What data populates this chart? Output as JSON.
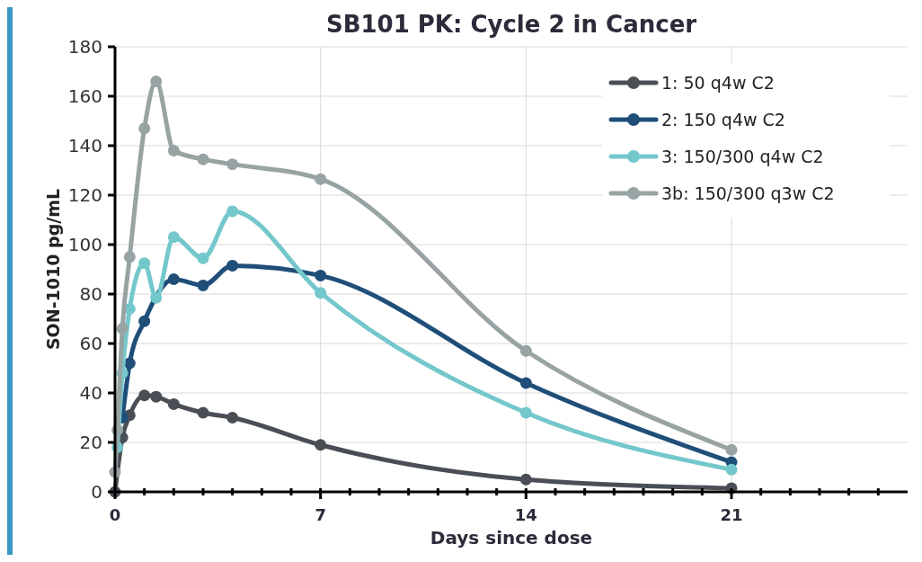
{
  "chart_data": {
    "type": "line",
    "title": "SB101 PK: Cycle 2 in Cancer",
    "xlabel": "Days since dose",
    "ylabel": "SON-1010 pg/mL",
    "xlim": [
      0,
      27
    ],
    "xticks": [
      0,
      {
        "value": 1,
        "label": null
      },
      {
        "value": 2,
        "label": null
      },
      {
        "value": 3,
        "label": null
      },
      {
        "value": 4,
        "label": null
      },
      {
        "value": 5,
        "label": null
      },
      {
        "value": 6,
        "label": null
      },
      7,
      {
        "value": 8,
        "label": null
      },
      {
        "value": 9,
        "label": null
      },
      {
        "value": 10,
        "label": null
      },
      {
        "value": 11,
        "label": null
      },
      {
        "value": 12,
        "label": null
      },
      {
        "value": 13,
        "label": null
      },
      14,
      {
        "value": 15,
        "label": null
      },
      {
        "value": 16,
        "label": null
      },
      {
        "value": 17,
        "label": null
      },
      {
        "value": 18,
        "label": null
      },
      {
        "value": 19,
        "label": null
      },
      {
        "value": 20,
        "label": null
      },
      21,
      {
        "value": 22,
        "label": null
      },
      {
        "value": 23,
        "label": null
      },
      {
        "value": 24,
        "label": null
      },
      {
        "value": 25,
        "label": null
      },
      {
        "value": 26,
        "label": null
      }
    ],
    "ylim": [
      0,
      180
    ],
    "yticks": [
      0,
      20,
      40,
      60,
      80,
      100,
      120,
      140,
      160,
      180
    ],
    "grid": true,
    "legend": "top right",
    "marker": "circle",
    "line_style": "solid",
    "x": [
      0,
      0.08,
      0.25,
      0.5,
      1,
      1.4,
      2,
      3,
      4,
      7,
      14,
      21
    ],
    "series": [
      {
        "name": "1: 50 q4w C2",
        "color": "#4a4f55",
        "values": [
          0,
          null,
          22,
          31,
          39,
          38.5,
          35.5,
          32,
          30,
          19,
          5,
          1.5
        ]
      },
      {
        "name": "2: 150 q4w C2",
        "color": "#1f4e79",
        "values": [
          null,
          null,
          30,
          52,
          69,
          null,
          86,
          83.5,
          91.5,
          87.5,
          44,
          12
        ]
      },
      {
        "name": "3: 150/300 q4w C2",
        "color": "#74c7cb",
        "values": [
          null,
          18,
          48,
          74,
          92.5,
          78.5,
          103,
          94.5,
          113.5,
          80.5,
          32,
          9
        ]
      },
      {
        "name": "3b: 150/300 q3w C2",
        "color": "#98a3a3",
        "values": [
          8,
          25,
          66,
          95,
          147,
          166,
          138,
          134.5,
          132.5,
          126.5,
          57,
          17
        ]
      }
    ]
  }
}
